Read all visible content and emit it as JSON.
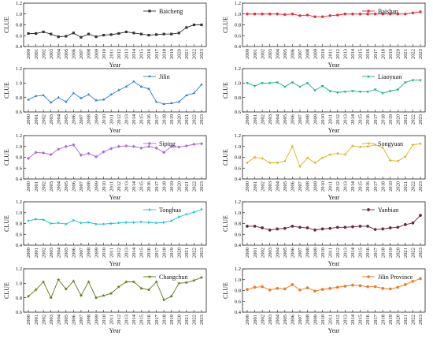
{
  "years": [
    "2000",
    "2001",
    "2002",
    "2003",
    "2004",
    "2005",
    "2006",
    "2007",
    "2008",
    "2009",
    "2010",
    "2011",
    "2012",
    "2013",
    "2014",
    "2015",
    "2016",
    "2017",
    "2018",
    "2019",
    "2020",
    "2021",
    "2022",
    "2023"
  ],
  "xlabel": "Year",
  "ylabel": "CLUE",
  "chart_data": [
    {
      "type": "line",
      "name": "Baicheng",
      "color": "#333333",
      "marker": "square",
      "ylim": [
        0.4,
        1.2
      ],
      "yticks": [
        "0.4",
        "0.6",
        "0.8",
        "1.0",
        "1.2"
      ],
      "values": [
        0.64,
        0.64,
        0.67,
        0.63,
        0.58,
        0.59,
        0.65,
        0.57,
        0.63,
        0.58,
        0.61,
        0.62,
        0.64,
        0.67,
        0.65,
        0.63,
        0.61,
        0.62,
        0.63,
        0.63,
        0.65,
        0.75,
        0.8,
        0.8
      ]
    },
    {
      "type": "line",
      "name": "Baishan",
      "color": "#e8283c",
      "marker": "circle",
      "ylim": [
        0.4,
        1.2
      ],
      "yticks": [
        "0.4",
        "0.6",
        "0.8",
        "1.0",
        "1.2"
      ],
      "values": [
        1.0,
        1.0,
        1.0,
        1.0,
        1.0,
        0.99,
        1.0,
        0.97,
        0.98,
        0.95,
        0.95,
        0.97,
        0.98,
        1.0,
        1.0,
        1.0,
        1.0,
        1.0,
        1.0,
        1.0,
        1.0,
        1.0,
        1.02,
        1.04
      ]
    },
    {
      "type": "line",
      "name": "Jilin",
      "color": "#2a7fd4",
      "marker": "triangle",
      "ylim": [
        0.6,
        1.2
      ],
      "yticks": [
        "0.6",
        "0.8",
        "1.0",
        "1.2"
      ],
      "values": [
        0.77,
        0.82,
        0.83,
        0.73,
        0.8,
        0.74,
        0.86,
        0.79,
        0.84,
        0.76,
        0.77,
        0.84,
        0.9,
        0.95,
        1.02,
        0.95,
        0.92,
        0.74,
        0.71,
        0.72,
        0.74,
        0.83,
        0.86,
        0.98
      ]
    },
    {
      "type": "line",
      "name": "Liaoyuan",
      "color": "#17b07a",
      "marker": "triangle-down",
      "ylim": [
        0.6,
        1.2
      ],
      "yticks": [
        "0.6",
        "0.8",
        "1.0",
        "1.2"
      ],
      "values": [
        1.0,
        0.96,
        1.0,
        1.0,
        1.01,
        0.95,
        1.01,
        0.95,
        1.0,
        0.9,
        0.96,
        0.89,
        0.87,
        0.88,
        0.89,
        0.88,
        0.88,
        0.91,
        0.86,
        0.89,
        0.91,
        1.01,
        1.04,
        1.04
      ]
    },
    {
      "type": "line",
      "name": "Siping",
      "color": "#b064d8",
      "marker": "diamond",
      "ylim": [
        0.4,
        1.2
      ],
      "yticks": [
        "0.4",
        "0.6",
        "0.8",
        "1.0",
        "1.2"
      ],
      "values": [
        0.78,
        0.89,
        0.88,
        0.85,
        0.95,
        1.0,
        1.03,
        0.84,
        0.87,
        0.81,
        0.9,
        0.96,
        1.0,
        1.01,
        1.0,
        0.97,
        1.0,
        0.97,
        0.89,
        1.0,
        0.99,
        1.01,
        1.04,
        1.05
      ]
    },
    {
      "type": "line",
      "name": "Songyuan",
      "color": "#d9b316",
      "marker": "triangle-left",
      "ylim": [
        0.4,
        1.2
      ],
      "yticks": [
        "0.4",
        "0.6",
        "0.8",
        "1.0",
        "1.2"
      ],
      "values": [
        0.7,
        0.8,
        0.78,
        0.7,
        0.7,
        0.73,
        1.0,
        0.63,
        0.79,
        0.7,
        0.79,
        0.85,
        0.87,
        0.85,
        1.01,
        0.99,
        1.0,
        1.03,
        0.98,
        0.74,
        0.73,
        0.81,
        1.03,
        1.05
      ]
    },
    {
      "type": "line",
      "name": "Tonghua",
      "color": "#17c2d4",
      "marker": "triangle-right",
      "ylim": [
        0.4,
        1.2
      ],
      "yticks": [
        "0.4",
        "0.6",
        "0.8",
        "1.0",
        "1.2"
      ],
      "values": [
        0.85,
        0.88,
        0.87,
        0.8,
        0.81,
        0.79,
        0.86,
        0.81,
        0.82,
        0.79,
        0.79,
        0.8,
        0.81,
        0.82,
        0.82,
        0.83,
        0.82,
        0.81,
        0.82,
        0.85,
        0.92,
        0.97,
        1.01,
        1.06
      ]
    },
    {
      "type": "line",
      "name": "Yanbian",
      "color": "#6b2a3a",
      "marker": "hexagon",
      "ylim": [
        0.4,
        1.2
      ],
      "yticks": [
        "0.4",
        "0.6",
        "0.8",
        "1.0",
        "1.2"
      ],
      "values": [
        0.75,
        0.75,
        0.72,
        0.68,
        0.7,
        0.71,
        0.75,
        0.73,
        0.72,
        0.68,
        0.7,
        0.71,
        0.73,
        0.73,
        0.74,
        0.75,
        0.75,
        0.69,
        0.7,
        0.72,
        0.73,
        0.78,
        0.81,
        0.95
      ]
    },
    {
      "type": "line",
      "name": "Changchun",
      "color": "#5c7a0e",
      "marker": "star",
      "ylim": [
        0.6,
        1.2
      ],
      "yticks": [
        "0.6",
        "0.8",
        "1.0",
        "1.2"
      ],
      "values": [
        0.82,
        0.91,
        1.02,
        0.8,
        1.05,
        0.92,
        1.03,
        0.83,
        1.02,
        0.8,
        0.83,
        0.86,
        0.95,
        1.02,
        1.02,
        0.93,
        0.91,
        1.02,
        0.77,
        0.82,
        1.0,
        1.01,
        1.04,
        1.08
      ]
    },
    {
      "type": "line",
      "name": "Jilin Province",
      "color": "#f07818",
      "marker": "pentagon",
      "ylim": [
        0.4,
        1.2
      ],
      "yticks": [
        "0.4",
        "0.6",
        "0.8",
        "1.0",
        "1.2"
      ],
      "values": [
        0.82,
        0.86,
        0.87,
        0.81,
        0.84,
        0.83,
        0.91,
        0.81,
        0.85,
        0.79,
        0.82,
        0.84,
        0.86,
        0.88,
        0.9,
        0.89,
        0.87,
        0.87,
        0.84,
        0.83,
        0.86,
        0.91,
        0.97,
        1.02
      ]
    }
  ]
}
